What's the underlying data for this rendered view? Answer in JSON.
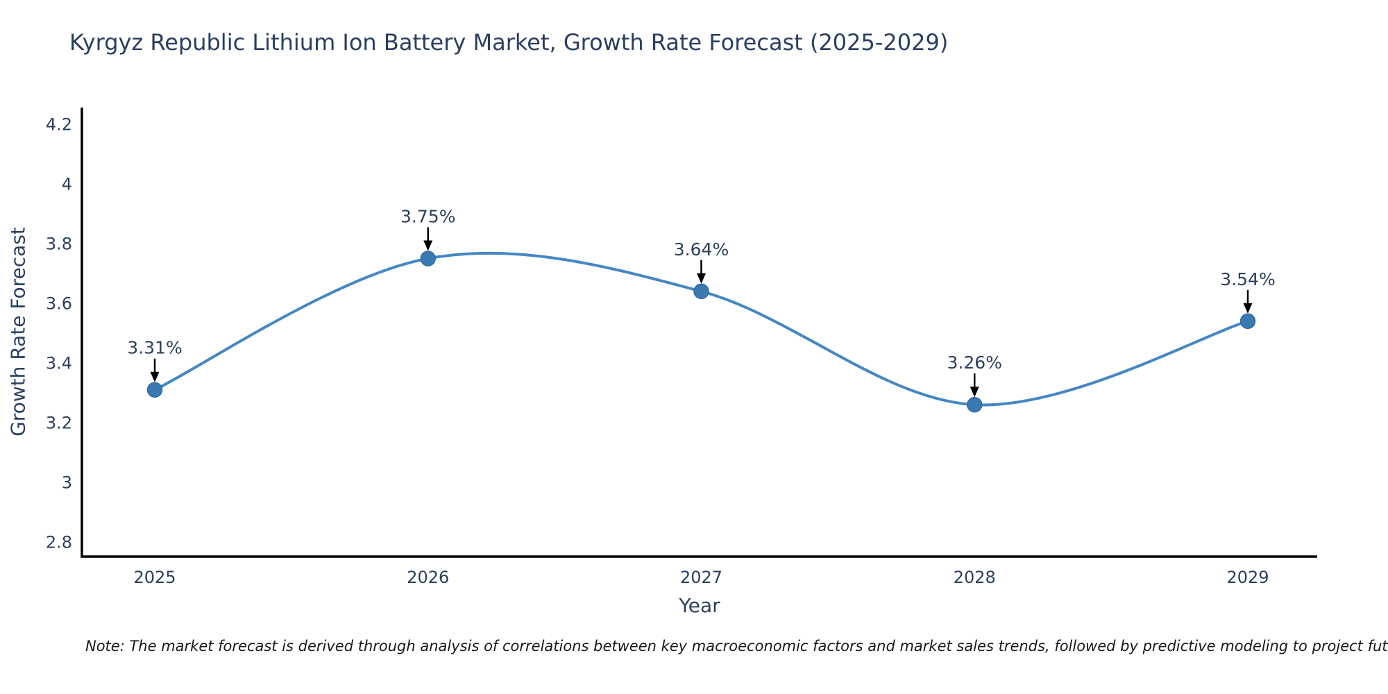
{
  "chart_data": {
    "type": "line",
    "title": "Kyrgyz Republic Lithium Ion Battery Market, Growth Rate Forecast (2025-2029)",
    "xlabel": "Year",
    "ylabel": "Growth Rate Forecast",
    "x": [
      2025,
      2026,
      2027,
      2028,
      2029
    ],
    "y": [
      3.31,
      3.75,
      3.64,
      3.26,
      3.54
    ],
    "point_labels": [
      "3.31%",
      "3.75%",
      "3.64%",
      "3.26%",
      "3.54%"
    ],
    "xtick_labels": [
      "2025",
      "2026",
      "2027",
      "2028",
      "2029"
    ],
    "yticks": [
      2.8,
      3.0,
      3.2,
      3.4,
      3.6,
      3.8,
      4.0,
      4.2
    ],
    "ytick_labels": [
      "2.8",
      "3",
      "3.2",
      "3.4",
      "3.6",
      "3.8",
      "4",
      "4.2"
    ],
    "ylim": [
      2.75,
      4.25
    ],
    "line_shape": "spline",
    "grid": false,
    "legend": "none",
    "line_color": "#4587c3",
    "marker_color": "#3b79b2",
    "marker_edge_color": "#2f6aa0",
    "axis_color": "#000000",
    "arrow_color": "#000000",
    "text_color": "#2a3f5f",
    "note": "Note: The market forecast is derived through analysis of correlations between key macroeconomic factors and market sales trends, followed by predictive modeling to project future sales"
  }
}
